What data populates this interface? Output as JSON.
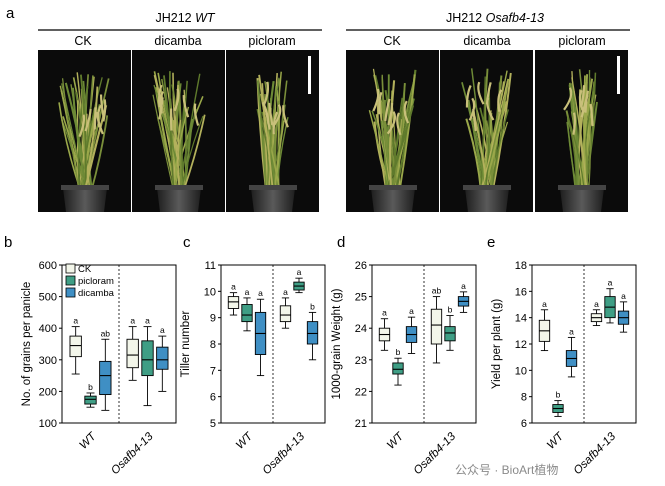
{
  "figure": {
    "panel_a_label": "a",
    "wt_title": "JH212",
    "wt_title_italic": "WT",
    "mut_title": "JH212",
    "mut_title_italic": "Osafb4-13",
    "treatments": [
      "CK",
      "dicamba",
      "picloram"
    ],
    "watermark": "公众号 · BioArt植物"
  },
  "legend": {
    "entries": [
      "CK",
      "picloram",
      "dicamba"
    ]
  },
  "colors": {
    "CK": "#f3f6ea",
    "picloram": "#3f9e85",
    "dicamba": "#3f8fc4"
  },
  "chart_data": [
    {
      "type": "box",
      "panel": "b",
      "ylabel": "No. of grains per panicle",
      "ylim": [
        100,
        600
      ],
      "yticks": [
        "100",
        "200",
        "300",
        "400",
        "500",
        "600"
      ],
      "categories": [
        "WT",
        "Osafb4-13"
      ],
      "series": [
        {
          "name": "CK",
          "boxes": [
            {
              "min": 255,
              "q1": 310,
              "median": 345,
              "q3": 375,
              "max": 405,
              "letter": "a"
            },
            {
              "min": 235,
              "q1": 275,
              "median": 315,
              "q3": 365,
              "max": 405,
              "letter": "a"
            }
          ]
        },
        {
          "name": "picloram",
          "boxes": [
            {
              "min": 150,
              "q1": 160,
              "median": 175,
              "q3": 185,
              "max": 195,
              "letter": "b"
            },
            {
              "min": 155,
              "q1": 250,
              "median": 300,
              "q3": 360,
              "max": 405,
              "letter": "a"
            }
          ]
        },
        {
          "name": "dicamba",
          "boxes": [
            {
              "min": 140,
              "q1": 190,
              "median": 250,
              "q3": 295,
              "max": 365,
              "letter": "ab"
            },
            {
              "min": 200,
              "q1": 270,
              "median": 300,
              "q3": 340,
              "max": 375,
              "letter": "a"
            }
          ]
        }
      ]
    },
    {
      "type": "box",
      "panel": "c",
      "ylabel": "Tiller number",
      "ylim": [
        5,
        11
      ],
      "yticks": [
        "5",
        "6",
        "7",
        "8",
        "9",
        "10",
        "11"
      ],
      "categories": [
        "WT",
        "Osafb4-13"
      ],
      "series": [
        {
          "name": "CK",
          "boxes": [
            {
              "min": 9.1,
              "q1": 9.35,
              "median": 9.6,
              "q3": 9.8,
              "max": 9.95,
              "letter": "a"
            },
            {
              "min": 8.6,
              "q1": 8.85,
              "median": 9.1,
              "q3": 9.45,
              "max": 9.75,
              "letter": "a"
            }
          ]
        },
        {
          "name": "picloram",
          "boxes": [
            {
              "min": 8.5,
              "q1": 8.85,
              "median": 9.1,
              "q3": 9.5,
              "max": 9.75,
              "letter": "a"
            },
            {
              "min": 9.95,
              "q1": 10.05,
              "median": 10.2,
              "q3": 10.35,
              "max": 10.5,
              "letter": "a"
            }
          ]
        },
        {
          "name": "dicamba",
          "boxes": [
            {
              "min": 6.8,
              "q1": 7.6,
              "median": 8.4,
              "q3": 9.2,
              "max": 9.7,
              "letter": "a"
            },
            {
              "min": 7.4,
              "q1": 8.0,
              "median": 8.4,
              "q3": 8.85,
              "max": 9.2,
              "letter": "b"
            }
          ]
        }
      ]
    },
    {
      "type": "box",
      "panel": "d",
      "ylabel": "1000-grain Weight (g)",
      "ylim": [
        21,
        26
      ],
      "yticks": [
        "21",
        "22",
        "23",
        "24",
        "25",
        "26"
      ],
      "categories": [
        "WT",
        "Osafb4-13"
      ],
      "series": [
        {
          "name": "CK",
          "boxes": [
            {
              "min": 23.3,
              "q1": 23.6,
              "median": 23.8,
              "q3": 24.0,
              "max": 24.3,
              "letter": "a"
            },
            {
              "min": 22.9,
              "q1": 23.5,
              "median": 24.1,
              "q3": 24.6,
              "max": 25.0,
              "letter": "ab"
            }
          ]
        },
        {
          "name": "picloram",
          "boxes": [
            {
              "min": 22.2,
              "q1": 22.55,
              "median": 22.7,
              "q3": 22.9,
              "max": 23.05,
              "letter": "b"
            },
            {
              "min": 23.3,
              "q1": 23.6,
              "median": 23.85,
              "q3": 24.05,
              "max": 24.4,
              "letter": "b"
            }
          ]
        },
        {
          "name": "dicamba",
          "boxes": [
            {
              "min": 23.2,
              "q1": 23.55,
              "median": 23.8,
              "q3": 24.05,
              "max": 24.35,
              "letter": "a"
            },
            {
              "min": 24.5,
              "q1": 24.7,
              "median": 24.85,
              "q3": 25.0,
              "max": 25.15,
              "letter": "a"
            }
          ]
        }
      ]
    },
    {
      "type": "box",
      "panel": "e",
      "ylabel": "Yield per plant (g)",
      "ylim": [
        6,
        18
      ],
      "yticks": [
        "6",
        "8",
        "10",
        "12",
        "14",
        "16",
        "18"
      ],
      "categories": [
        "WT",
        "Osafb4-13"
      ],
      "series": [
        {
          "name": "CK",
          "boxes": [
            {
              "min": 11.5,
              "q1": 12.2,
              "median": 13.0,
              "q3": 13.8,
              "max": 14.6,
              "letter": "a"
            },
            {
              "min": 13.4,
              "q1": 13.7,
              "median": 14.0,
              "q3": 14.3,
              "max": 14.6,
              "letter": "a"
            }
          ]
        },
        {
          "name": "picloram",
          "boxes": [
            {
              "min": 6.5,
              "q1": 6.8,
              "median": 7.1,
              "q3": 7.4,
              "max": 7.7,
              "letter": "b"
            },
            {
              "min": 13.6,
              "q1": 14.0,
              "median": 14.8,
              "q3": 15.6,
              "max": 16.2,
              "letter": "a"
            }
          ]
        },
        {
          "name": "dicamba",
          "boxes": [
            {
              "min": 9.5,
              "q1": 10.3,
              "median": 10.9,
              "q3": 11.5,
              "max": 12.5,
              "letter": "a"
            },
            {
              "min": 12.9,
              "q1": 13.5,
              "median": 14.0,
              "q3": 14.5,
              "max": 15.2,
              "letter": "a"
            }
          ]
        }
      ]
    }
  ]
}
